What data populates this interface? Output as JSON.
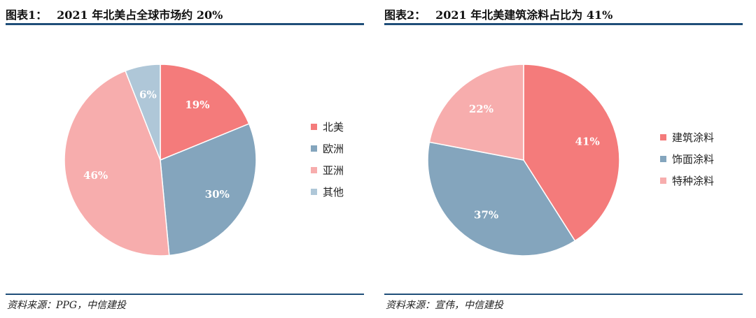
{
  "charts": [
    {
      "prefix": "图表1：",
      "title": "2021 年北美占全球市场约 20%",
      "source": "资料来源：PPG，中信建投"
    },
    {
      "prefix": "图表2：",
      "title": "2021 年北美建筑涂料占比为 41%",
      "source": "资料来源：宣伟，中信建投"
    }
  ],
  "colors": {
    "rule": "#1f4e79",
    "red": "#f47b7b",
    "steel_blue": "#84a5bd",
    "pink": "#f7adad",
    "light_blue": "#afc7d8"
  },
  "chart_data": [
    {
      "type": "pie",
      "title": "2021 年北美占全球市场约 20%",
      "legend_position": "right",
      "slices": [
        {
          "label": "北美",
          "value": 19,
          "display": "19%",
          "color": "#f47b7b"
        },
        {
          "label": "欧洲",
          "value": 30,
          "display": "30%",
          "color": "#84a5bd"
        },
        {
          "label": "亚洲",
          "value": 46,
          "display": "46%",
          "color": "#f7adad"
        },
        {
          "label": "其他",
          "value": 6,
          "display": "6%",
          "color": "#afc7d8"
        }
      ]
    },
    {
      "type": "pie",
      "title": "2021 年北美建筑涂料占比为 41%",
      "legend_position": "right",
      "slices": [
        {
          "label": "建筑涂料",
          "value": 41,
          "display": "41%",
          "color": "#f47b7b"
        },
        {
          "label": "饰面涂料",
          "value": 37,
          "display": "37%",
          "color": "#84a5bd"
        },
        {
          "label": "特种涂料",
          "value": 22,
          "display": "22%",
          "color": "#f7adad"
        }
      ]
    }
  ]
}
